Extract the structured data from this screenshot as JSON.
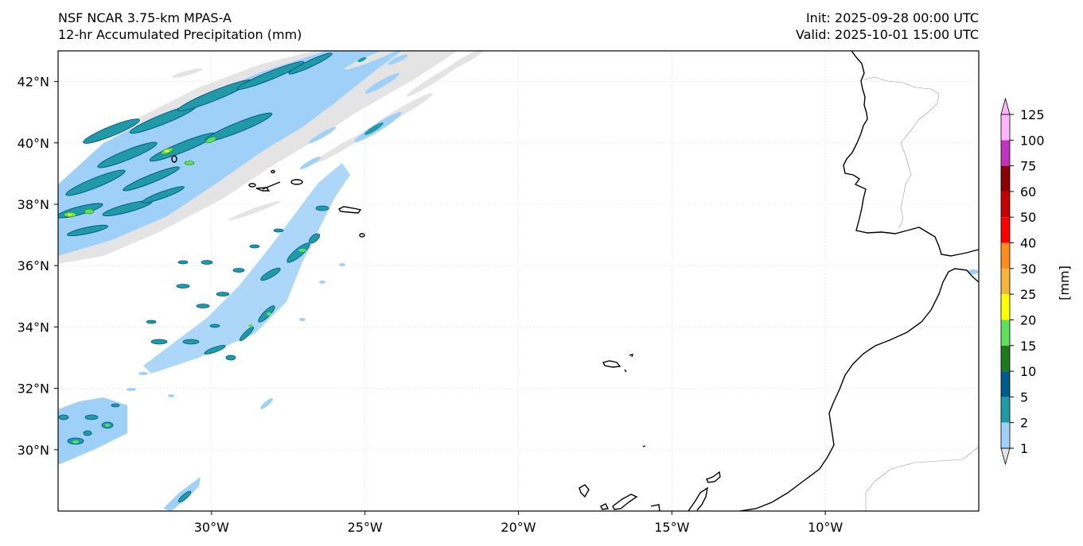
{
  "title": {
    "model": "NSF NCAR 3.75-km MPAS-A",
    "field": "12-hr Accumulated Precipitation (mm)",
    "init": "Init: 2025-09-28 00:00 UTC",
    "valid": "Valid: 2025-10-01 15:00 UTC"
  },
  "map": {
    "lon_range": [
      -35,
      -5
    ],
    "lat_range": [
      28,
      43
    ],
    "lat_ticks": [
      {
        "value": 42,
        "label": "42°N"
      },
      {
        "value": 40,
        "label": "40°N"
      },
      {
        "value": 38,
        "label": "38°N"
      },
      {
        "value": 36,
        "label": "36°N"
      },
      {
        "value": 34,
        "label": "34°N"
      },
      {
        "value": 32,
        "label": "32°N"
      },
      {
        "value": 30,
        "label": "30°N"
      }
    ],
    "lon_ticks": [
      {
        "value": -30,
        "label": "30°W"
      },
      {
        "value": -25,
        "label": "25°W"
      },
      {
        "value": -20,
        "label": "20°W"
      },
      {
        "value": -15,
        "label": "15°W"
      },
      {
        "value": -10,
        "label": "10°W"
      }
    ]
  },
  "colorbar": {
    "label": "[mm]",
    "levels": [
      "1",
      "2",
      "5",
      "10",
      "15",
      "20",
      "25",
      "30",
      "40",
      "50",
      "60",
      "75",
      "100",
      "125"
    ],
    "colors": [
      "#e4e4e4",
      "#9ed0f8",
      "#1f9aa6",
      "#005a8e",
      "#1f7a1f",
      "#5de05d",
      "#ffff00",
      "#f5b53d",
      "#ff8c1a",
      "#ff0000",
      "#c40000",
      "#8b0000",
      "#c034c0",
      "#ffb6ff"
    ]
  }
}
